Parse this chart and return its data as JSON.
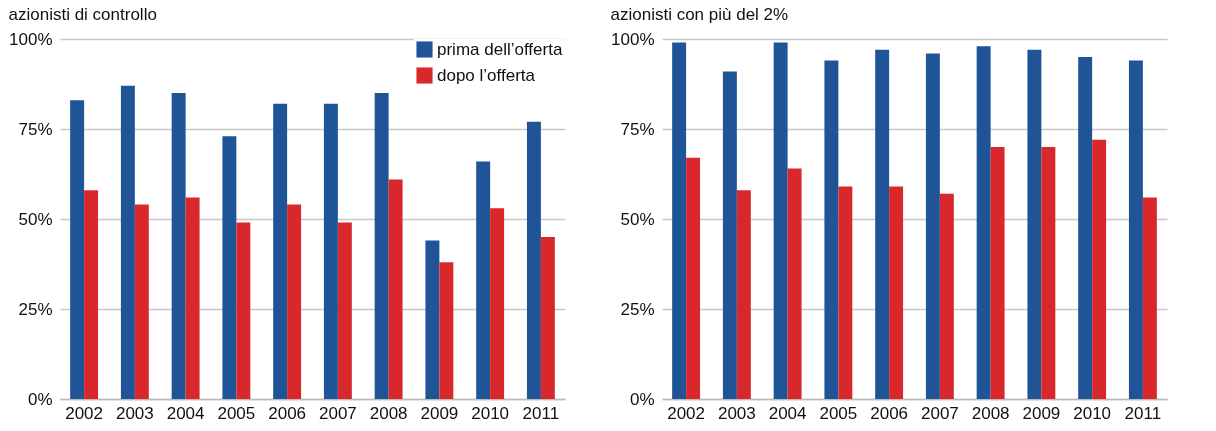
{
  "chart_data": [
    {
      "type": "bar",
      "title": "azionisti di controllo",
      "categories": [
        "2002",
        "2003",
        "2004",
        "2005",
        "2006",
        "2007",
        "2008",
        "2009",
        "2010",
        "2011"
      ],
      "series": [
        {
          "name": "prima dell’offerta",
          "color": "#1f5597",
          "values": [
            83,
            87,
            85,
            73,
            82,
            82,
            85,
            44,
            66,
            77
          ]
        },
        {
          "name": "dopo l’offerta",
          "color": "#d9282b",
          "values": [
            58,
            54,
            56,
            49,
            54,
            49,
            61,
            38,
            53,
            45
          ]
        }
      ],
      "ylim": [
        0,
        100
      ],
      "yticks": [
        {
          "value": 0,
          "label": "0%"
        },
        {
          "value": 25,
          "label": "25%"
        },
        {
          "value": 50,
          "label": "50%"
        },
        {
          "value": 75,
          "label": "75%"
        },
        {
          "value": 100,
          "label": "100%"
        }
      ],
      "grid": "y",
      "legend": "top right"
    },
    {
      "type": "bar",
      "title": "azionisti con più del 2%",
      "categories": [
        "2002",
        "2003",
        "2004",
        "2005",
        "2006",
        "2007",
        "2008",
        "2009",
        "2010",
        "2011"
      ],
      "series": [
        {
          "color": "#1f5597",
          "values": [
            99,
            91,
            99,
            94,
            97,
            96,
            98,
            97,
            95,
            94
          ]
        },
        {
          "color": "#d9282b",
          "values": [
            67,
            58,
            64,
            59,
            59,
            57,
            70,
            70,
            72,
            56
          ]
        }
      ],
      "ylim": [
        0,
        100
      ],
      "yticks": [
        {
          "value": 0,
          "label": "0%"
        },
        {
          "value": 25,
          "label": "25%"
        },
        {
          "value": 50,
          "label": "50%"
        },
        {
          "value": 75,
          "label": "75%"
        },
        {
          "value": 100,
          "label": "100%"
        }
      ],
      "grid": "y"
    }
  ]
}
